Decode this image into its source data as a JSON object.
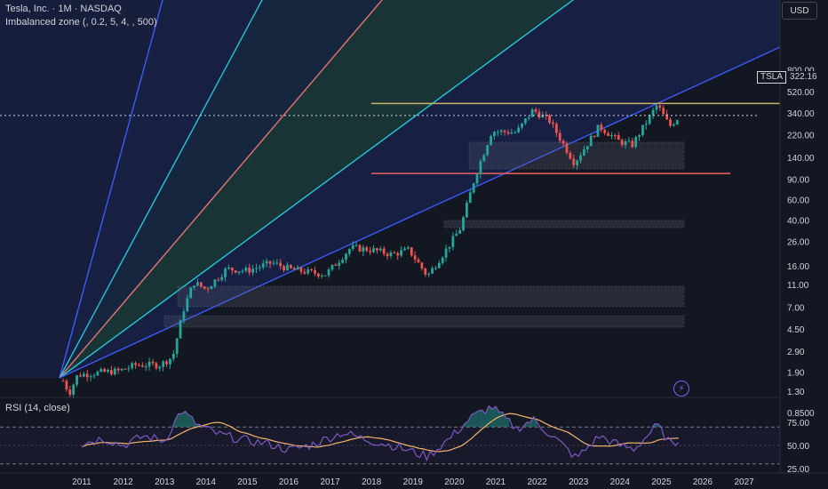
{
  "header": {
    "symbol": "Tesla, Inc.",
    "sep1": "·",
    "interval": "1M",
    "sep2": "·",
    "exchange": "NASDAQ",
    "indicator": "Imbalanced zone (, 0.2, 5, 4, , 500)",
    "rsi_title": "RSI (14, close)"
  },
  "currency": "USD",
  "last_price": {
    "symbol": "TSLA",
    "value": "322.16"
  },
  "colors": {
    "background": "#131722",
    "fan_fill": "#1c2a6b",
    "green_fill": "#1d4d44",
    "up_candle": "#26a69a",
    "down_candle": "#ef5350",
    "gann_blue": "#3d5afe",
    "gann_cyan": "#26c6da",
    "gann_red": "#e57373",
    "resistance": "#c8b26b",
    "support": "#f06262",
    "rsi_line": "#7e57c2",
    "rsi_ma": "#f5b26b"
  },
  "chart_data": {
    "type": "candlestick",
    "scale": "log",
    "y_axis_labels": [
      "800.00",
      "520.00",
      "340.00",
      "220.00",
      "140.00",
      "90.00",
      "60.00",
      "40.00",
      "26.00",
      "16.00",
      "11.00",
      "7.00",
      "4.50",
      "2.90",
      "1.90",
      "1.30",
      "0.8500"
    ],
    "y_axis_values": [
      800,
      520,
      340,
      220,
      140,
      90,
      60,
      40,
      26,
      16,
      11,
      7,
      4.5,
      2.9,
      1.9,
      1.3,
      0.85
    ],
    "x_axis_labels": [
      "2011",
      "2012",
      "2013",
      "2014",
      "2015",
      "2016",
      "2017",
      "2018",
      "2019",
      "2020",
      "2021",
      "2022",
      "2023",
      "2024",
      "2025",
      "2026",
      "2027"
    ],
    "monthly_close_anchors": [
      {
        "t": 2010.55,
        "v": 1.6
      },
      {
        "t": 2010.7,
        "v": 1.25
      },
      {
        "t": 2010.9,
        "v": 1.8
      },
      {
        "t": 2011.5,
        "v": 1.9
      },
      {
        "t": 2011.9,
        "v": 1.95
      },
      {
        "t": 2012.3,
        "v": 2.2
      },
      {
        "t": 2012.9,
        "v": 2.2
      },
      {
        "t": 2013.2,
        "v": 2.6
      },
      {
        "t": 2013.45,
        "v": 6.5
      },
      {
        "t": 2013.7,
        "v": 11.5
      },
      {
        "t": 2014.0,
        "v": 10.0
      },
      {
        "t": 2014.5,
        "v": 15.0
      },
      {
        "t": 2015.0,
        "v": 14.5
      },
      {
        "t": 2015.6,
        "v": 17.0
      },
      {
        "t": 2016.0,
        "v": 15.0
      },
      {
        "t": 2016.5,
        "v": 14.0
      },
      {
        "t": 2016.9,
        "v": 13.5
      },
      {
        "t": 2017.5,
        "v": 23.0
      },
      {
        "t": 2018.0,
        "v": 22.0
      },
      {
        "t": 2018.5,
        "v": 20.0
      },
      {
        "t": 2018.9,
        "v": 22.0
      },
      {
        "t": 2019.35,
        "v": 13.0
      },
      {
        "t": 2019.8,
        "v": 22.0
      },
      {
        "t": 2020.15,
        "v": 34.0
      },
      {
        "t": 2020.5,
        "v": 95.0
      },
      {
        "t": 2020.9,
        "v": 235.0
      },
      {
        "t": 2021.5,
        "v": 230.0
      },
      {
        "t": 2021.9,
        "v": 360.0
      },
      {
        "t": 2022.3,
        "v": 290.0
      },
      {
        "t": 2022.9,
        "v": 125.0
      },
      {
        "t": 2023.5,
        "v": 260.0
      },
      {
        "t": 2024.0,
        "v": 190.0
      },
      {
        "t": 2024.3,
        "v": 180.0
      },
      {
        "t": 2024.9,
        "v": 400.0
      },
      {
        "t": 2025.2,
        "v": 260.0
      },
      {
        "t": 2025.45,
        "v": 322.0
      }
    ],
    "horizontal_levels": [
      {
        "name": "resistance",
        "value": 410
      },
      {
        "name": "support",
        "value": 101
      }
    ],
    "rsi": {
      "axis_labels": [
        "75.00",
        "50.00",
        "25.00"
      ],
      "axis_values": [
        75,
        50,
        25
      ],
      "overbought": 70,
      "oversold": 30,
      "anchors": [
        {
          "t": 2011.0,
          "v": 52
        },
        {
          "t": 2011.5,
          "v": 58
        },
        {
          "t": 2012.0,
          "v": 50
        },
        {
          "t": 2012.5,
          "v": 60
        },
        {
          "t": 2013.0,
          "v": 55
        },
        {
          "t": 2013.4,
          "v": 88
        },
        {
          "t": 2013.8,
          "v": 72
        },
        {
          "t": 2014.3,
          "v": 62
        },
        {
          "t": 2015.0,
          "v": 55
        },
        {
          "t": 2015.5,
          "v": 52
        },
        {
          "t": 2016.0,
          "v": 45
        },
        {
          "t": 2016.5,
          "v": 50
        },
        {
          "t": 2017.3,
          "v": 64
        },
        {
          "t": 2017.9,
          "v": 56
        },
        {
          "t": 2018.5,
          "v": 50
        },
        {
          "t": 2019.35,
          "v": 38
        },
        {
          "t": 2019.9,
          "v": 58
        },
        {
          "t": 2020.4,
          "v": 80
        },
        {
          "t": 2020.9,
          "v": 92
        },
        {
          "t": 2021.5,
          "v": 68
        },
        {
          "t": 2021.9,
          "v": 78
        },
        {
          "t": 2022.5,
          "v": 55
        },
        {
          "t": 2022.95,
          "v": 36
        },
        {
          "t": 2023.5,
          "v": 60
        },
        {
          "t": 2024.0,
          "v": 50
        },
        {
          "t": 2024.35,
          "v": 46
        },
        {
          "t": 2024.9,
          "v": 72
        },
        {
          "t": 2025.25,
          "v": 50
        },
        {
          "t": 2025.45,
          "v": 58
        }
      ]
    }
  }
}
